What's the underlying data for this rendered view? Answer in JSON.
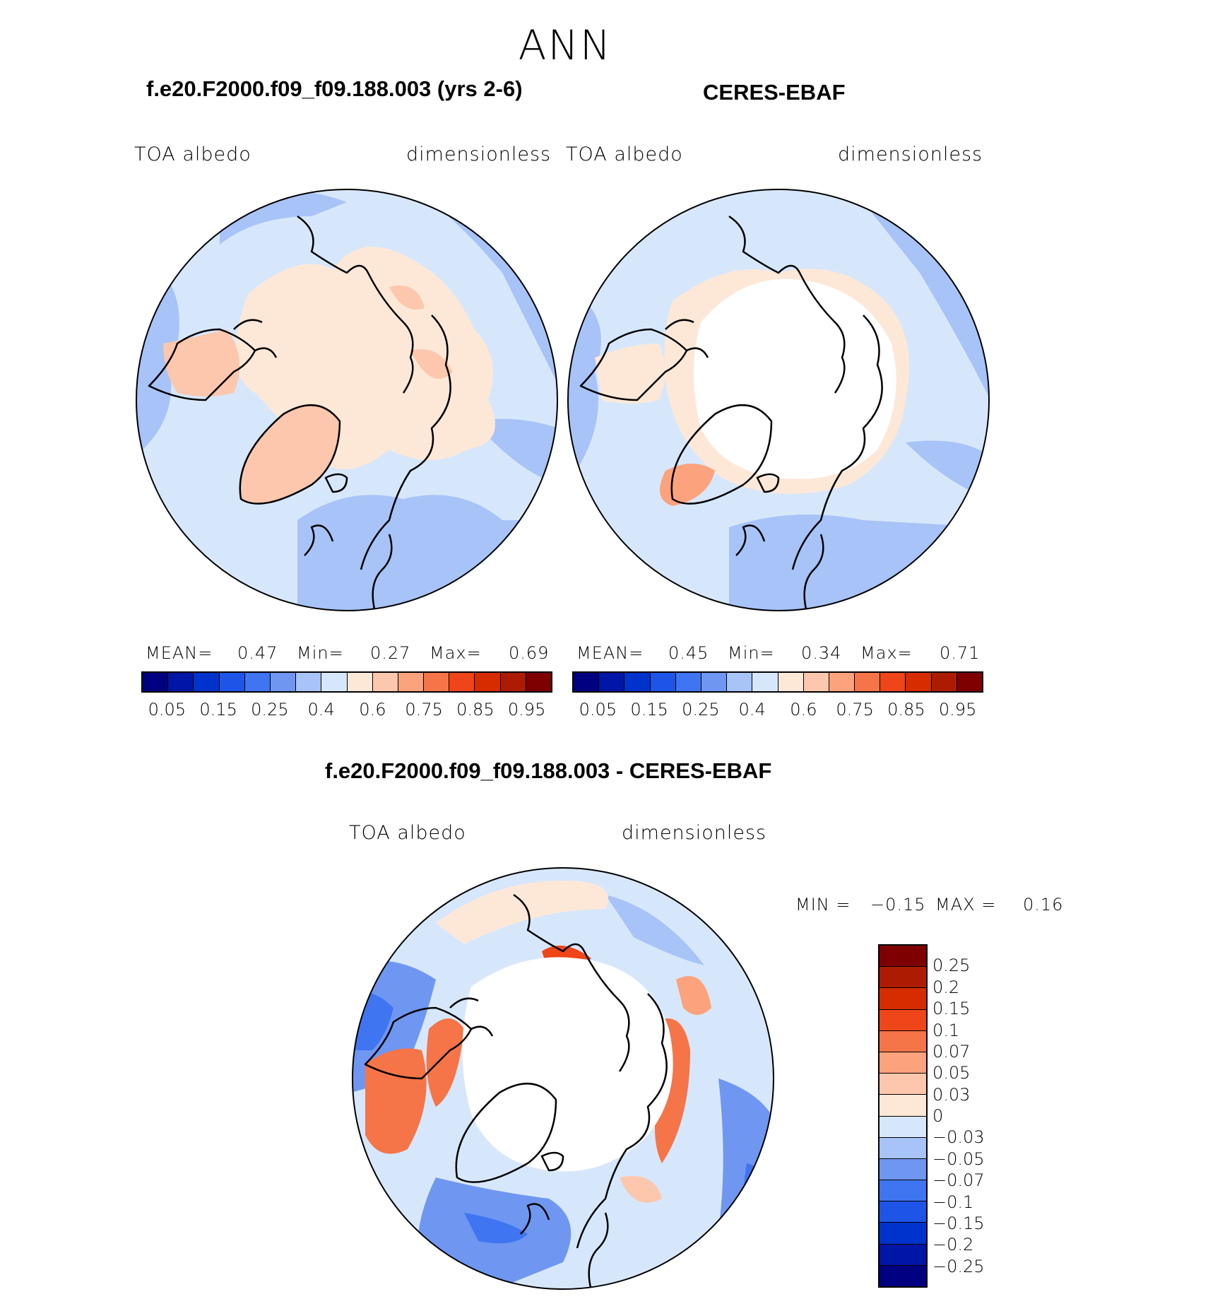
{
  "figure": {
    "title": "ANN"
  },
  "panels": {
    "model": {
      "title": "f.e20.F2000.f09_f09.188.003 (yrs 2-6)",
      "left_label": "TOA  albedo",
      "right_label": "dimensionless",
      "stats": {
        "mean_label": "MEAN=",
        "mean": "0.47",
        "min_label": "Min=",
        "min": "0.27",
        "max_label": "Max=",
        "max": "0.69"
      }
    },
    "obs": {
      "title": "CERES-EBAF",
      "left_label": "TOA  albedo",
      "right_label": "dimensionless",
      "stats": {
        "mean_label": "MEAN=",
        "mean": "0.45",
        "min_label": "Min=",
        "min": "0.34",
        "max_label": "Max=",
        "max": "0.71"
      }
    },
    "diff": {
      "title": "f.e20.F2000.f09_f09.188.003 - CERES-EBAF",
      "left_label": "TOA  albedo",
      "right_label": "dimensionless",
      "stats": {
        "min_label": "MIN =",
        "min": "−0.15",
        "max_label": "MAX =",
        "max": "0.16"
      }
    }
  },
  "colorbars": {
    "abs": {
      "colors": [
        "#000080",
        "#0016a6",
        "#0033cc",
        "#1e55e8",
        "#3f75f0",
        "#6f97f2",
        "#a7c3f7",
        "#d7e7fb",
        "#fde8d8",
        "#fcc7ad",
        "#fca27c",
        "#f57448",
        "#ee4618",
        "#d62c00",
        "#ad1c02",
        "#7f0000"
      ],
      "tick_labels": [
        "0.05",
        "0.15",
        "0.25",
        "0.4",
        "0.6",
        "0.75",
        "0.85",
        "0.95"
      ]
    },
    "diff": {
      "colors": [
        "#7f0000",
        "#ad1c02",
        "#d62c00",
        "#ee4618",
        "#f57448",
        "#fca27c",
        "#fcc7ad",
        "#fde8d8",
        "#d7e7fb",
        "#a7c3f7",
        "#6f97f2",
        "#3f75f0",
        "#1e55e8",
        "#0033cc",
        "#0016a6",
        "#000080"
      ],
      "tick_labels": [
        "0.25",
        "0.2",
        "0.15",
        "0.1",
        "0.07",
        "0.05",
        "0.03",
        "0",
        "−0.03",
        "−0.05",
        "−0.07",
        "−0.1",
        "−0.15",
        "−0.2",
        "−0.25"
      ]
    }
  }
}
